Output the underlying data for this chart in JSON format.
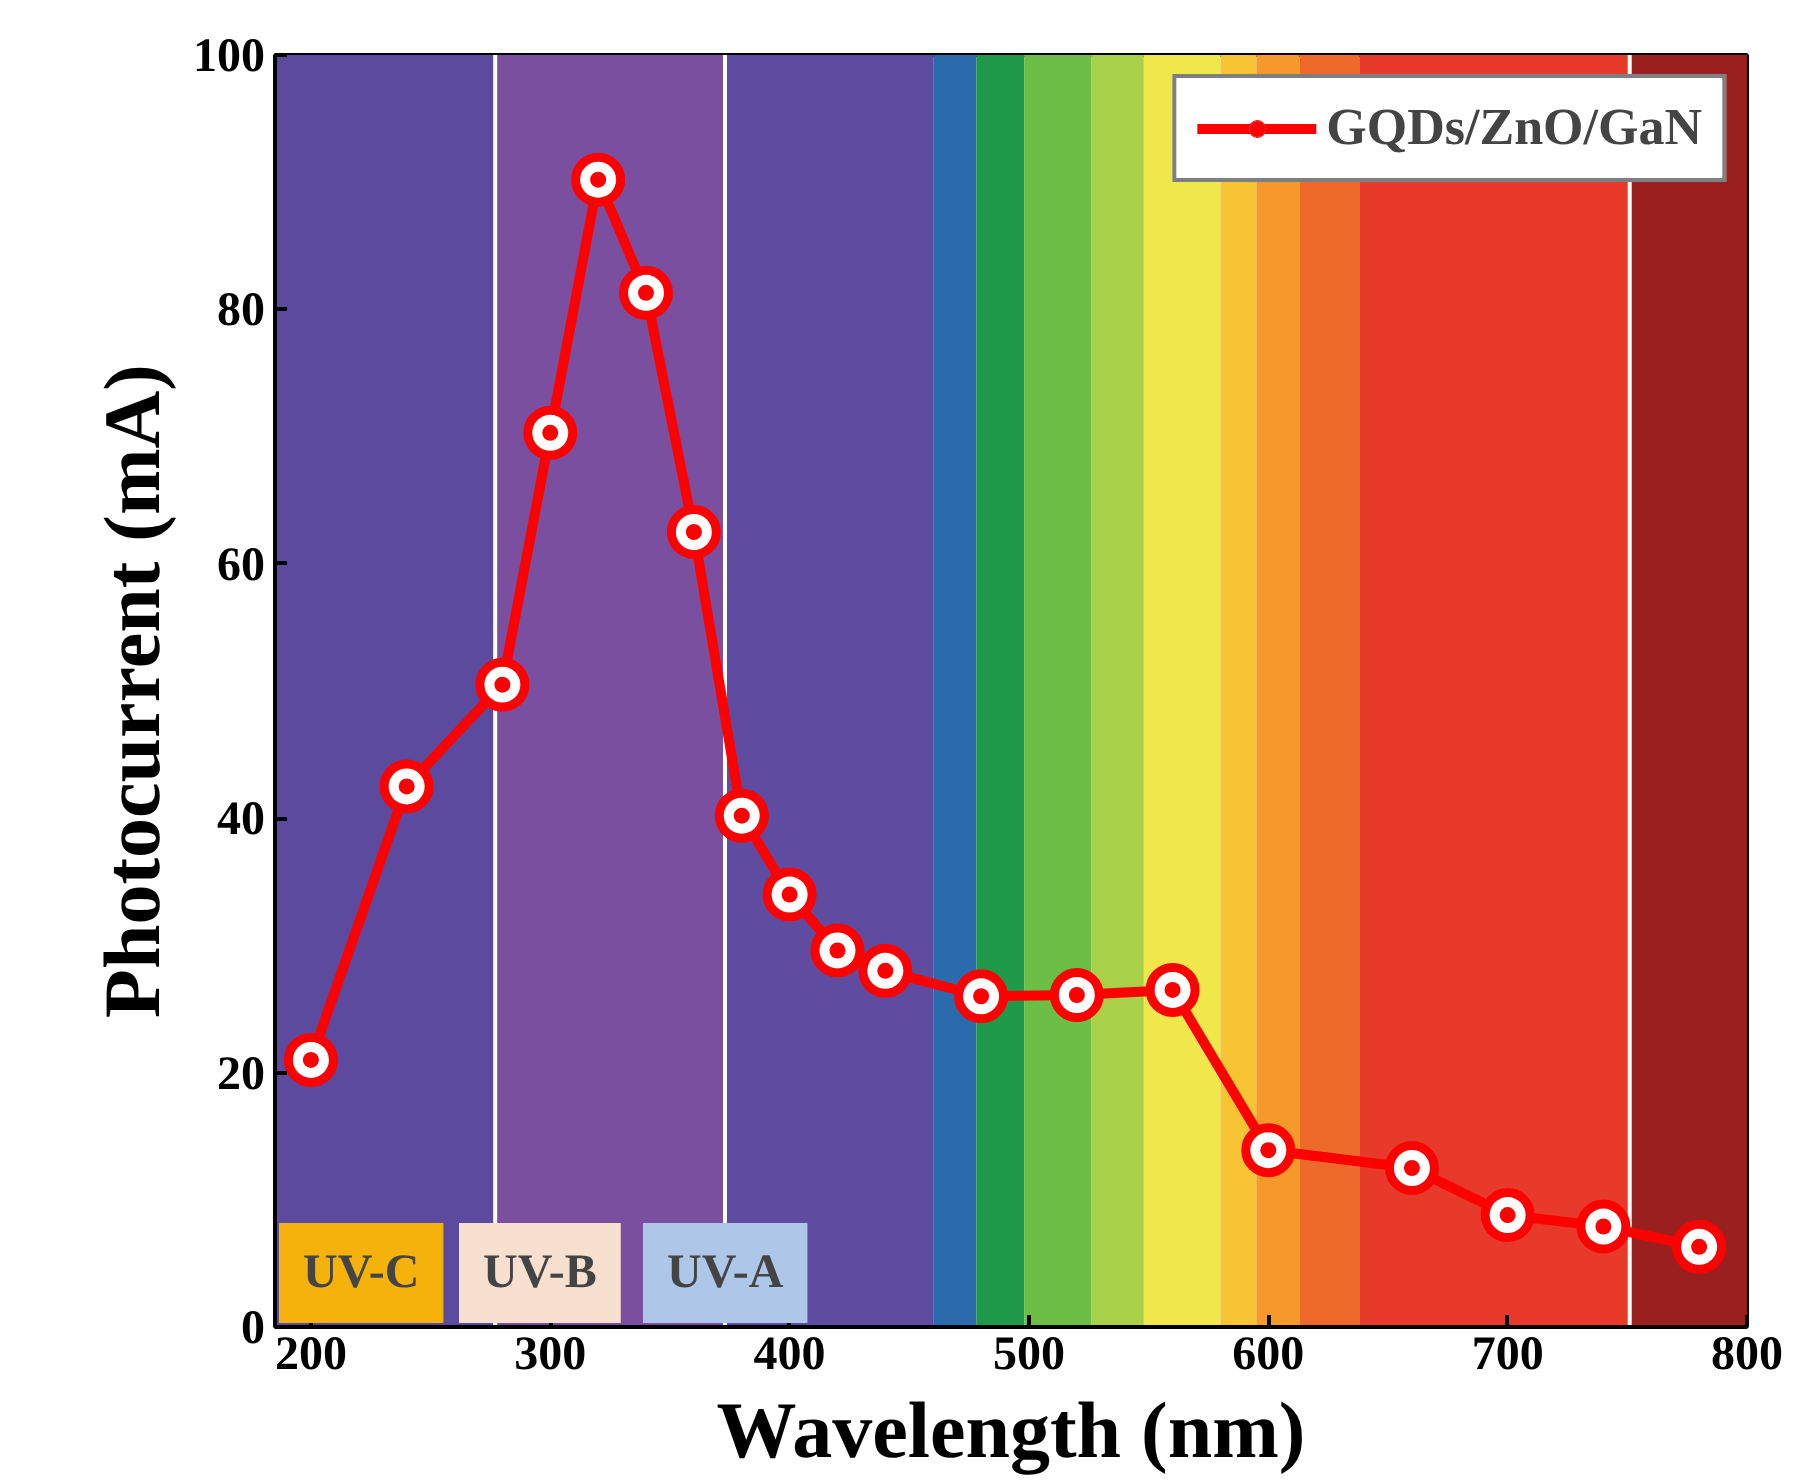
{
  "chart_data": {
    "type": "line",
    "xlabel": "Wavelength (nm)",
    "ylabel": "Photocurrent (mA)",
    "x": [
      200,
      240,
      280,
      300,
      320,
      340,
      360,
      380,
      400,
      420,
      440,
      480,
      520,
      560,
      600,
      660,
      700,
      740,
      780
    ],
    "series": [
      {
        "name": "GQDs/ZnO/GaN",
        "color": "#ff0000",
        "values": [
          21,
          42.5,
          50.5,
          70.3,
          90.2,
          81.3,
          62.5,
          40.2,
          34,
          29.6,
          28,
          26,
          26.1,
          26.5,
          13.9,
          12.5,
          8.8,
          7.9,
          6.3
        ]
      }
    ],
    "xlim": [
      185,
      800
    ],
    "ylim": [
      0,
      100
    ],
    "xticks": [
      200,
      300,
      400,
      500,
      600,
      700,
      800
    ],
    "yticks": [
      0,
      20,
      40,
      60,
      80,
      100
    ],
    "grid": false,
    "legend": "top right",
    "marker": "circle",
    "line_style": "solid",
    "bands": [
      {
        "axis": "x",
        "from": 185,
        "to": 277,
        "color": "#5b4a9e"
      },
      {
        "axis": "x",
        "from": 277,
        "to": 373,
        "color": "#7b4fa0"
      },
      {
        "axis": "x",
        "from": 373,
        "to": 460,
        "color": "#5f4ca0"
      },
      {
        "axis": "x",
        "from": 460,
        "to": 478,
        "color": "#2a6aad"
      },
      {
        "axis": "x",
        "from": 478,
        "to": 498,
        "color": "#1f9a4a"
      },
      {
        "axis": "x",
        "from": 498,
        "to": 526,
        "color": "#6bbf45"
      },
      {
        "axis": "x",
        "from": 526,
        "to": 548,
        "color": "#a8d048"
      },
      {
        "axis": "x",
        "from": 548,
        "to": 580,
        "color": "#f0e84a"
      },
      {
        "axis": "x",
        "from": 580,
        "to": 595,
        "color": "#f7c433"
      },
      {
        "axis": "x",
        "from": 595,
        "to": 613,
        "color": "#f59a2a"
      },
      {
        "axis": "x",
        "from": 613,
        "to": 638,
        "color": "#ee6a2a"
      },
      {
        "axis": "x",
        "from": 638,
        "to": 751,
        "color": "#e83a2a"
      },
      {
        "axis": "x",
        "from": 751,
        "to": 800,
        "color": "#9a1f1f"
      }
    ],
    "ref_lines": [
      {
        "axis": "x",
        "value": 277,
        "color": "#ffffff"
      },
      {
        "axis": "x",
        "value": 373,
        "color": "#ffffff"
      },
      {
        "axis": "x",
        "value": 751,
        "color": "#ffffff"
      }
    ],
    "annotations": [
      "UV-C",
      "UV-B",
      "UV-A"
    ]
  }
}
